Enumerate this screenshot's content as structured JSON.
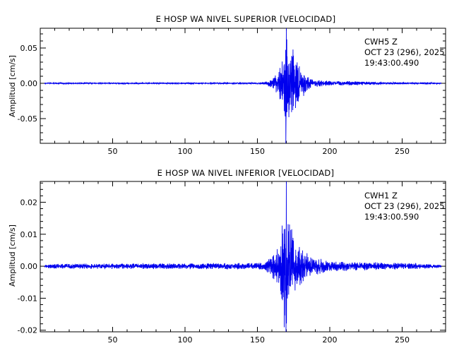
{
  "chart_data": [
    {
      "type": "line",
      "title": "E HOSP WA NIVEL SUPERIOR [VELOCIDAD]",
      "xlabel": "",
      "ylabel": "Amplitud [cm/s]",
      "xlim": [
        0,
        280
      ],
      "ylim": [
        -0.085,
        0.078
      ],
      "x_ticks": [
        50,
        100,
        150,
        200,
        250
      ],
      "y_ticks": [
        -0.05,
        0.0,
        0.05
      ],
      "y_tick_labels": [
        "-0.05",
        "0.00",
        "0.05"
      ],
      "annotation": [
        "CWH5   Z",
        "OCT 23 (296), 2025",
        "19:43:00.490"
      ],
      "series": [
        {
          "color": "#0000ee",
          "noise_amplitude": 0.0007,
          "envelope": [
            [
              0,
              0.0007
            ],
            [
              150,
              0.0008
            ],
            [
              155,
              0.002
            ],
            [
              160,
              0.006
            ],
            [
              164,
              0.014
            ],
            [
              167,
              0.03
            ],
            [
              169,
              0.05
            ],
            [
              170,
              0.078
            ],
            [
              172,
              0.06
            ],
            [
              175,
              0.04
            ],
            [
              180,
              0.02
            ],
            [
              185,
              0.009
            ],
            [
              190,
              0.005
            ],
            [
              200,
              0.003
            ],
            [
              220,
              0.0025
            ],
            [
              240,
              0.0015
            ],
            [
              260,
              0.001
            ],
            [
              280,
              0.0008
            ]
          ],
          "peaks": [
            {
              "x": 170.0,
              "y": 0.078
            },
            {
              "x": 169.6,
              "y": -0.085
            }
          ]
        }
      ]
    },
    {
      "type": "line",
      "title": "E HOSP WA NIVEL INFERIOR [VELOCIDAD]",
      "xlabel": "",
      "ylabel": "Amplitud [cm/s]",
      "xlim": [
        0,
        280
      ],
      "ylim": [
        -0.0205,
        0.0265
      ],
      "x_ticks": [
        50,
        100,
        150,
        200,
        250
      ],
      "y_ticks": [
        -0.02,
        -0.01,
        0.0,
        0.01,
        0.02
      ],
      "y_tick_labels": [
        "-0.02",
        "-0.01",
        "0.00",
        "0.01",
        "0.02"
      ],
      "annotation": [
        "CWH1   Z",
        "OCT 23 (296), 2025",
        "19:43:00.590"
      ],
      "series": [
        {
          "color": "#0000ee",
          "noise_amplitude": 0.0006,
          "envelope": [
            [
              0,
              0.0004
            ],
            [
              10,
              0.0007
            ],
            [
              150,
              0.0009
            ],
            [
              155,
              0.001
            ],
            [
              157,
              0.0025
            ],
            [
              160,
              0.0035
            ],
            [
              163,
              0.004
            ],
            [
              166,
              0.01
            ],
            [
              168,
              0.016
            ],
            [
              170,
              0.0265
            ],
            [
              172,
              0.014
            ],
            [
              175,
              0.008
            ],
            [
              180,
              0.005
            ],
            [
              190,
              0.0025
            ],
            [
              200,
              0.0015
            ],
            [
              230,
              0.0011
            ],
            [
              260,
              0.0008
            ],
            [
              280,
              0.0003
            ]
          ],
          "peaks": [
            {
              "x": 170.0,
              "y": 0.0265
            },
            {
              "x": 169.8,
              "y": -0.0205
            }
          ]
        }
      ]
    }
  ]
}
